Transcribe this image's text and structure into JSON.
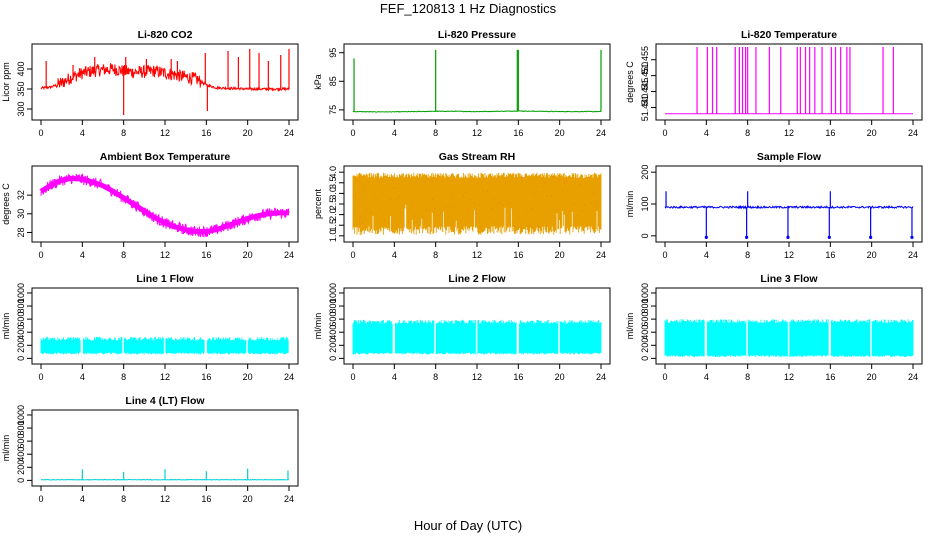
{
  "figure": {
    "title": "FEF_120813  1 Hz Diagnostics",
    "xlabel": "Hour of Day (UTC)"
  },
  "chart_data": [
    {
      "type": "line",
      "title": "Li-820 CO2",
      "ylabel": "Licor ppm",
      "color": "#ff0000",
      "xlim": [
        0,
        24
      ],
      "ylim": [
        280,
        455
      ],
      "yticks": [
        300,
        350,
        400
      ],
      "xticks": [
        0,
        4,
        8,
        12,
        16,
        20,
        24
      ],
      "series": [
        {
          "name": "",
          "x": [
            0,
            1,
            2,
            3,
            4,
            5,
            6,
            7,
            8,
            9,
            10,
            11,
            12,
            13,
            14,
            15,
            16,
            17,
            18,
            19,
            20,
            21,
            22,
            23,
            24
          ],
          "values": [
            352,
            355,
            365,
            380,
            390,
            395,
            398,
            400,
            395,
            392,
            393,
            395,
            390,
            385,
            380,
            375,
            360,
            353,
            352,
            351,
            350,
            350,
            350,
            350,
            350
          ]
        }
      ],
      "spikes": [
        {
          "x": 0.5,
          "y": 420
        },
        {
          "x": 5.2,
          "y": 430
        },
        {
          "x": 8,
          "y": 285
        },
        {
          "x": 8.2,
          "y": 430
        },
        {
          "x": 15.9,
          "y": 440
        },
        {
          "x": 16.1,
          "y": 295
        },
        {
          "x": 18.1,
          "y": 445
        },
        {
          "x": 19.1,
          "y": 430
        },
        {
          "x": 20.2,
          "y": 450
        },
        {
          "x": 21.1,
          "y": 440
        },
        {
          "x": 22,
          "y": 420
        },
        {
          "x": 23.2,
          "y": 435
        },
        {
          "x": 24,
          "y": 450
        },
        {
          "x": 3.1,
          "y": 410
        },
        {
          "x": 10.2,
          "y": 425
        },
        {
          "x": 12.6,
          "y": 425
        },
        {
          "x": 13.2,
          "y": 420
        }
      ]
    },
    {
      "type": "line",
      "title": "Li-820 Pressure",
      "ylabel": "kPa",
      "color": "#00a000",
      "xlim": [
        0,
        24
      ],
      "ylim": [
        72.5,
        97
      ],
      "yticks": [
        75,
        85,
        95
      ],
      "xticks": [
        0,
        4,
        8,
        12,
        16,
        20,
        24
      ],
      "series": [
        {
          "name": "",
          "x": [
            0,
            2,
            4,
            6,
            8,
            10,
            12,
            14,
            16,
            18,
            20,
            22,
            24
          ],
          "values": [
            74.4,
            74.3,
            74.3,
            74.4,
            74.5,
            74.5,
            74.4,
            74.5,
            74.6,
            74.5,
            74.4,
            74.4,
            74.4
          ]
        }
      ],
      "spikes": [
        {
          "x": 0.1,
          "y": 93
        },
        {
          "x": 8,
          "y": 96
        },
        {
          "x": 15.9,
          "y": 96
        },
        {
          "x": 16,
          "y": 96
        },
        {
          "x": 24,
          "y": 96
        }
      ]
    },
    {
      "type": "line",
      "title": "Li-820 Temperature",
      "ylabel": "degrees C",
      "color": "#ff00ff",
      "xlim": [
        0,
        24
      ],
      "ylim": [
        51.437,
        51.459
      ],
      "yticks": [
        51.44,
        51.445,
        51.45,
        51.455
      ],
      "ytick_labels": [
        "51.440",
        "51.445",
        "51.450",
        "51.455"
      ],
      "xticks": [
        0,
        4,
        8,
        12,
        16,
        20,
        24
      ],
      "series": [
        {
          "name": "",
          "x": [
            0,
            24
          ],
          "values": [
            51.438,
            51.438
          ]
        }
      ],
      "spikes": [
        {
          "x": 3.1,
          "y": 51.459
        },
        {
          "x": 4.1,
          "y": 51.459
        },
        {
          "x": 4.6,
          "y": 51.459
        },
        {
          "x": 5,
          "y": 51.459
        },
        {
          "x": 6.8,
          "y": 51.459
        },
        {
          "x": 7.2,
          "y": 51.459
        },
        {
          "x": 7.5,
          "y": 51.459
        },
        {
          "x": 7.8,
          "y": 51.459
        },
        {
          "x": 8,
          "y": 51.459
        },
        {
          "x": 8.8,
          "y": 51.459
        },
        {
          "x": 10.1,
          "y": 51.459
        },
        {
          "x": 11.2,
          "y": 51.459
        },
        {
          "x": 12.8,
          "y": 51.459
        },
        {
          "x": 13.1,
          "y": 51.459
        },
        {
          "x": 13.6,
          "y": 51.459
        },
        {
          "x": 14,
          "y": 51.459
        },
        {
          "x": 14.5,
          "y": 51.459
        },
        {
          "x": 15.2,
          "y": 51.459
        },
        {
          "x": 16.1,
          "y": 51.459
        },
        {
          "x": 16.5,
          "y": 51.459
        },
        {
          "x": 17,
          "y": 51.459
        },
        {
          "x": 17.6,
          "y": 51.459
        },
        {
          "x": 17.9,
          "y": 51.459
        },
        {
          "x": 21.1,
          "y": 51.459
        },
        {
          "x": 22.1,
          "y": 51.459
        }
      ]
    },
    {
      "type": "line",
      "title": "Ambient Box Temperature",
      "ylabel": "degrees C",
      "color": "#ff00ff",
      "xlim": [
        0,
        24
      ],
      "ylim": [
        27.3,
        34.8
      ],
      "yticks": [
        28,
        30,
        32
      ],
      "xticks": [
        0,
        4,
        8,
        12,
        16,
        20,
        24
      ],
      "series": [
        {
          "name": "",
          "x": [
            0,
            1,
            2,
            3,
            4,
            5,
            6,
            7,
            8,
            9,
            10,
            11,
            12,
            13,
            14,
            15,
            16,
            17,
            18,
            19,
            20,
            21,
            22,
            23,
            24
          ],
          "values": [
            32.4,
            33.1,
            33.6,
            33.8,
            33.7,
            33.4,
            33.0,
            32.4,
            31.7,
            31.0,
            30.3,
            29.6,
            29.0,
            28.6,
            28.3,
            28.1,
            28.1,
            28.3,
            28.7,
            29.1,
            29.5,
            29.8,
            30.0,
            30.1,
            30.1
          ]
        }
      ],
      "band": 0.6
    },
    {
      "type": "area",
      "title": "Gas Stream RH",
      "ylabel": "percent",
      "color": "#e8a000",
      "xlim": [
        0,
        24
      ],
      "ylim": [
        0.85,
        4.15
      ],
      "yticks": [
        1.0,
        1.5,
        2.0,
        2.5,
        3.0,
        3.5,
        4.0
      ],
      "ytick_labels": [
        "1.0",
        "1.5",
        "2.0",
        "2.5",
        "3.0",
        "3.5",
        "4.0"
      ],
      "xticks": [
        0,
        4,
        8,
        12,
        16,
        20,
        24
      ],
      "series": [
        {
          "name": "",
          "x": [
            0,
            24
          ],
          "values": [
            3.85,
            3.85
          ]
        }
      ],
      "low": 1.05
    },
    {
      "type": "line",
      "title": "Sample Flow",
      "ylabel": "ml/min",
      "color": "#0000ff",
      "xlim": [
        0,
        24
      ],
      "ylim": [
        -10,
        210
      ],
      "yticks": [
        0,
        100,
        200
      ],
      "xticks": [
        0,
        4,
        8,
        12,
        16,
        20,
        24
      ],
      "series": [
        {
          "name": "",
          "x": [
            0,
            24
          ],
          "values": [
            90,
            90
          ]
        }
      ],
      "spikes": [
        {
          "x": 0.1,
          "y": 140
        },
        {
          "x": 4,
          "y": -5
        },
        {
          "x": 7.9,
          "y": -5
        },
        {
          "x": 8,
          "y": 140
        },
        {
          "x": 11.9,
          "y": -5
        },
        {
          "x": 15.9,
          "y": -5
        },
        {
          "x": 16,
          "y": 140
        },
        {
          "x": 19.9,
          "y": -5
        },
        {
          "x": 23.9,
          "y": -5
        }
      ]
    },
    {
      "type": "area",
      "title": "Line 1 Flow",
      "ylabel": "ml/min",
      "color": "#00ffff",
      "xlim": [
        0,
        24
      ],
      "ylim": [
        -40,
        1030
      ],
      "yticks": [
        0,
        200,
        400,
        600,
        800,
        1000
      ],
      "xticks": [
        0,
        4,
        8,
        12,
        16,
        20,
        24
      ],
      "series": [
        {
          "name": "",
          "x": [
            0,
            24
          ],
          "values": [
            300,
            300
          ]
        }
      ],
      "low": 60,
      "gaps": [
        3.95,
        7.95,
        11.95,
        15.95,
        19.95
      ]
    },
    {
      "type": "area",
      "title": "Line 2 Flow",
      "ylabel": "ml/min",
      "color": "#00ffff",
      "xlim": [
        0,
        24
      ],
      "ylim": [
        -40,
        1030
      ],
      "yticks": [
        0,
        200,
        400,
        600,
        800,
        1000
      ],
      "xticks": [
        0,
        4,
        8,
        12,
        16,
        20,
        24
      ],
      "series": [
        {
          "name": "",
          "x": [
            0,
            24
          ],
          "values": [
            560,
            560
          ]
        }
      ],
      "low": 60,
      "gaps": [
        3.95,
        7.95,
        11.95,
        15.95,
        19.95
      ]
    },
    {
      "type": "area",
      "title": "Line 3 Flow",
      "ylabel": "ml/min",
      "color": "#00ffff",
      "xlim": [
        0,
        24
      ],
      "ylim": [
        -40,
        1030
      ],
      "yticks": [
        0,
        200,
        400,
        600,
        800,
        1000
      ],
      "xticks": [
        0,
        4,
        8,
        12,
        16,
        20,
        24
      ],
      "series": [
        {
          "name": "",
          "x": [
            0,
            24
          ],
          "values": [
            570,
            570
          ]
        }
      ],
      "low": 20,
      "gaps": [
        3.95,
        7.95,
        11.95,
        15.95,
        19.95
      ]
    },
    {
      "type": "line",
      "title": "Line 4 (LT) Flow",
      "ylabel": "ml/min",
      "color": "#00d0d0",
      "xlim": [
        0,
        24
      ],
      "ylim": [
        -40,
        1030
      ],
      "yticks": [
        0,
        200,
        400,
        600,
        800,
        1000
      ],
      "xticks": [
        0,
        4,
        8,
        12,
        16,
        20,
        24
      ],
      "series": [
        {
          "name": "",
          "x": [
            0,
            24
          ],
          "values": [
            10,
            10
          ]
        }
      ],
      "spikes": [
        {
          "x": 4,
          "y": 170
        },
        {
          "x": 8,
          "y": 130
        },
        {
          "x": 12,
          "y": 170
        },
        {
          "x": 16,
          "y": 140
        },
        {
          "x": 20,
          "y": 180
        },
        {
          "x": 23.9,
          "y": 150
        }
      ]
    }
  ]
}
